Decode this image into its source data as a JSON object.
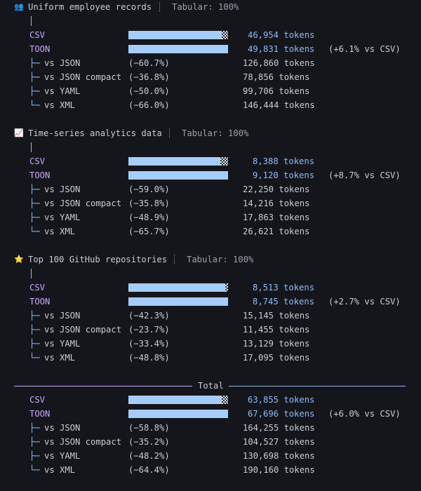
{
  "sections": [
    {
      "icon_name": "people-icon",
      "icon_glyph": "👥",
      "title": "Uniform employee records",
      "tabular": "Tabular: 100%",
      "csv_label": "CSV",
      "toon_label": "TOON",
      "csv_tokens": "46,954 tokens",
      "toon_tokens": "49,831 tokens",
      "delta": "(+6.1% vs CSV)",
      "csv_fill": 0.94,
      "comparisons": [
        {
          "tree": "├─",
          "label": "vs JSON",
          "pct": "(−60.7%)",
          "tokens": "126,860 tokens"
        },
        {
          "tree": "├─",
          "label": "vs JSON compact",
          "pct": "(−36.8%)",
          "tokens": "78,856 tokens"
        },
        {
          "tree": "├─",
          "label": "vs YAML",
          "pct": "(−50.0%)",
          "tokens": "99,706 tokens"
        },
        {
          "tree": "└─",
          "label": "vs XML",
          "pct": "(−66.0%)",
          "tokens": "146,444 tokens"
        }
      ]
    },
    {
      "icon_name": "chart-icon",
      "icon_glyph": "📈",
      "title": "Time-series analytics data",
      "tabular": "Tabular: 100%",
      "csv_label": "CSV",
      "toon_label": "TOON",
      "csv_tokens": "8,388 tokens",
      "toon_tokens": "9,120 tokens",
      "delta": "(+8.7% vs CSV)",
      "csv_fill": 0.92,
      "comparisons": [
        {
          "tree": "├─",
          "label": "vs JSON",
          "pct": "(−59.0%)",
          "tokens": "22,250 tokens"
        },
        {
          "tree": "├─",
          "label": "vs JSON compact",
          "pct": "(−35.8%)",
          "tokens": "14,216 tokens"
        },
        {
          "tree": "├─",
          "label": "vs YAML",
          "pct": "(−48.9%)",
          "tokens": "17,863 tokens"
        },
        {
          "tree": "└─",
          "label": "vs XML",
          "pct": "(−65.7%)",
          "tokens": "26,621 tokens"
        }
      ]
    },
    {
      "icon_name": "star-icon",
      "icon_glyph": "⭐",
      "title": "Top 100 GitHub repositories",
      "tabular": "Tabular: 100%",
      "csv_label": "CSV",
      "toon_label": "TOON",
      "csv_tokens": "8,513 tokens",
      "toon_tokens": "8,745 tokens",
      "delta": "(+2.7% vs CSV)",
      "csv_fill": 0.97,
      "comparisons": [
        {
          "tree": "├─",
          "label": "vs JSON",
          "pct": "(−42.3%)",
          "tokens": "15,145 tokens"
        },
        {
          "tree": "├─",
          "label": "vs JSON compact",
          "pct": "(−23.7%)",
          "tokens": "11,455 tokens"
        },
        {
          "tree": "├─",
          "label": "vs YAML",
          "pct": "(−33.4%)",
          "tokens": "13,129 tokens"
        },
        {
          "tree": "└─",
          "label": "vs XML",
          "pct": "(−48.8%)",
          "tokens": "17,095 tokens"
        }
      ]
    }
  ],
  "total": {
    "title": "Total",
    "csv_label": "CSV",
    "toon_label": "TOON",
    "csv_tokens": "63,855 tokens",
    "toon_tokens": "67,696 tokens",
    "delta": "(+6.0% vs CSV)",
    "csv_fill": 0.94,
    "comparisons": [
      {
        "tree": "├─",
        "label": "vs JSON",
        "pct": "(−58.8%)",
        "tokens": "164,255 tokens"
      },
      {
        "tree": "├─",
        "label": "vs JSON compact",
        "pct": "(−35.2%)",
        "tokens": "104,527 tokens"
      },
      {
        "tree": "├─",
        "label": "vs YAML",
        "pct": "(−48.2%)",
        "tokens": "130,698 tokens"
      },
      {
        "tree": "└─",
        "label": "vs XML",
        "pct": "(−64.4%)",
        "tokens": "190,160 tokens"
      }
    ]
  },
  "colors": {
    "background": "#15161b",
    "accent_purple": "#c8a6ff",
    "accent_blue": "#8ebcf7",
    "bar_fill": "#a6cdfa"
  }
}
